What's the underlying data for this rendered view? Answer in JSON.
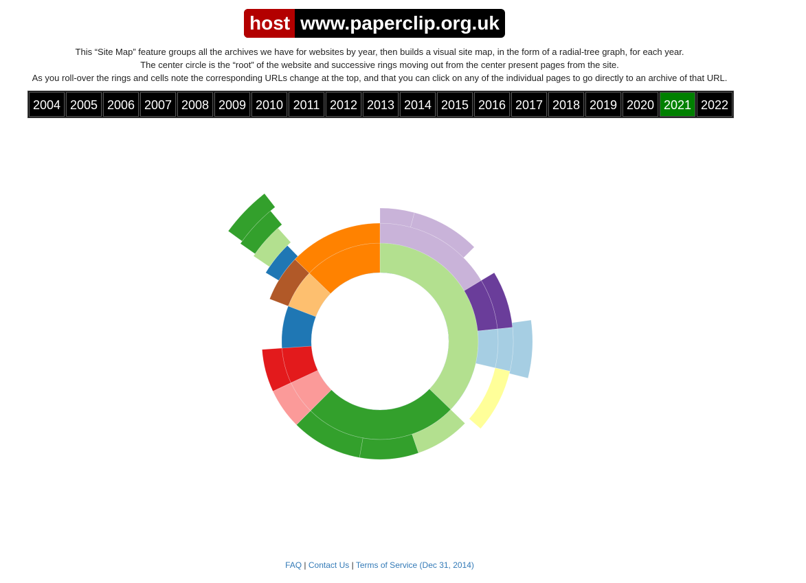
{
  "header": {
    "host_label": "host",
    "site_label": "www.paperclip.org.uk"
  },
  "description": [
    "This “Site Map” feature groups all the archives we have for websites by year, then builds a visual site map, in the form of a radial-tree graph, for each year.",
    "The center circle is the “root” of the website and successive rings moving out from the center present pages from the site.",
    "As you roll-over the rings and cells note the corresponding URLs change at the top, and that you can click on any of the individual pages to go directly to an archive of that URL."
  ],
  "years": [
    "2004",
    "2005",
    "2006",
    "2007",
    "2008",
    "2009",
    "2010",
    "2011",
    "2012",
    "2013",
    "2014",
    "2015",
    "2016",
    "2017",
    "2018",
    "2019",
    "2020",
    "2021",
    "2022"
  ],
  "selected_year": "2021",
  "colors": {
    "selected_year": "#008000",
    "root": "#1f77b4"
  },
  "sunburst": {
    "segments": [
      {
        "depth": 1,
        "start": 0,
        "end": 134,
        "color": "#b3e08f"
      },
      {
        "depth": 2,
        "start": 0,
        "end": 59,
        "color": "#c9b3d9"
      },
      {
        "depth": 3,
        "start": 0,
        "end": 15,
        "color": "#c9b3d9"
      },
      {
        "depth": 3,
        "start": 15,
        "end": 45,
        "color": "#c9b3d9"
      },
      {
        "depth": 2,
        "start": 59,
        "end": 84,
        "color": "#6a3d9a"
      },
      {
        "depth": 3,
        "start": 59,
        "end": 84,
        "color": "#6a3d9a"
      },
      {
        "depth": 4,
        "start": 82,
        "end": 104,
        "color": "#a6cee3"
      },
      {
        "depth": 2,
        "start": 84,
        "end": 103,
        "color": "#a6cee3"
      },
      {
        "depth": 3,
        "start": 84,
        "end": 103,
        "color": "#a6cee3"
      },
      {
        "depth": 3,
        "start": 103,
        "end": 131,
        "color": "#ffff99"
      },
      {
        "depth": 2,
        "start": 134,
        "end": 161,
        "color": "#b3e08f"
      },
      {
        "depth": 1,
        "start": 134,
        "end": 225,
        "color": "#33a02c"
      },
      {
        "depth": 2,
        "start": 161,
        "end": 190,
        "color": "#33a02c"
      },
      {
        "depth": 2,
        "start": 190,
        "end": 225,
        "color": "#33a02c"
      },
      {
        "depth": 1,
        "start": 225,
        "end": 245,
        "color": "#fb9a99"
      },
      {
        "depth": 2,
        "start": 225,
        "end": 245,
        "color": "#fb9a99"
      },
      {
        "depth": 1,
        "start": 245,
        "end": 266,
        "color": "#e31a1c"
      },
      {
        "depth": 2,
        "start": 245,
        "end": 266,
        "color": "#e31a1c"
      },
      {
        "depth": 1,
        "start": 266,
        "end": 291,
        "color": "#1f77b4"
      },
      {
        "depth": 1,
        "start": 291,
        "end": 314,
        "color": "#fdbf6f"
      },
      {
        "depth": 2,
        "start": 291,
        "end": 314,
        "color": "#b15928"
      },
      {
        "depth": 3,
        "start": 301,
        "end": 316,
        "color": "#1f77b4"
      },
      {
        "depth": 4,
        "start": 304,
        "end": 318,
        "color": "#b3e08f"
      },
      {
        "depth": 5,
        "start": 305,
        "end": 320,
        "color": "#33a02c"
      },
      {
        "depth": 6,
        "start": 306,
        "end": 322,
        "color": "#33a02c"
      },
      {
        "depth": 1,
        "start": 314,
        "end": 360,
        "color": "#ff8200"
      },
      {
        "depth": 2,
        "start": 314,
        "end": 360,
        "color": "#ff8200"
      }
    ]
  },
  "footer": {
    "faq": "FAQ",
    "contact": "Contact Us",
    "terms": "Terms of Service (Dec 31, 2014)",
    "separator": "|"
  }
}
